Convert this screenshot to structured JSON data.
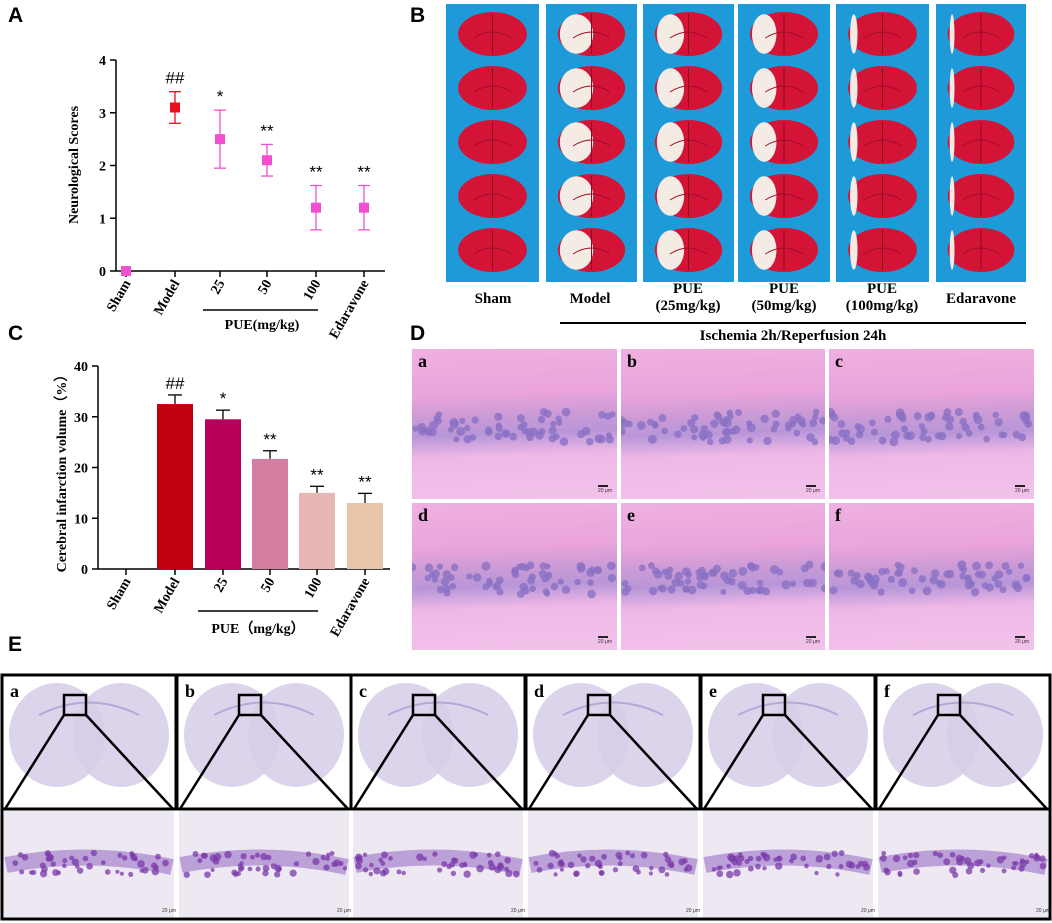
{
  "panel_letters": {
    "a": "A",
    "b": "B",
    "c": "C",
    "d": "D",
    "e": "E"
  },
  "colors": {
    "model": "#c00010",
    "pue25": "#b8005a",
    "pue50": "#d37ea0",
    "pue100": "#e8b6b4",
    "edaravone": "#e8c4a8",
    "markerA_model": "#e8101e",
    "markerA_pue": "#f050d0",
    "bg_blue": "#1e9ad8",
    "brain_red": "#d41436",
    "he_pink": "#eaa0d6",
    "nissl_bg": "#eee8f2"
  },
  "chart_data": [
    {
      "type": "scatter",
      "title": "",
      "xlabel": "PUE(mg/kg)",
      "ylabel": "Neurological Scores",
      "ylim": [
        0,
        4
      ],
      "yticks": [
        "0",
        "1",
        "2",
        "3",
        "4"
      ],
      "categories": [
        "Sham",
        "Model",
        "25",
        "50",
        "100",
        "Edaravone"
      ],
      "values": [
        0,
        3.1,
        2.5,
        2.1,
        1.2,
        1.2
      ],
      "errors": [
        0,
        0.3,
        0.55,
        0.3,
        0.42,
        0.42
      ],
      "annotations": [
        "",
        "##",
        "*",
        "**",
        "**",
        "**"
      ]
    },
    {
      "type": "bar",
      "title": "",
      "xlabel": "PUE（mg/kg）",
      "ylabel": "Cerebral infarction volume（%）",
      "ylim": [
        0,
        40
      ],
      "yticks": [
        "0",
        "10",
        "20",
        "30",
        "40"
      ],
      "categories": [
        "Sham",
        "Model",
        "25",
        "50",
        "100",
        "Edaravone"
      ],
      "values": [
        0,
        32.5,
        29.5,
        21.7,
        15,
        13
      ],
      "errors": [
        0,
        1.8,
        1.8,
        1.6,
        1.3,
        1.9
      ],
      "annotations": [
        "",
        "##",
        "*",
        "**",
        "**",
        "**"
      ]
    }
  ],
  "panelB": {
    "labels": [
      {
        "l1": "Sham",
        "l2": ""
      },
      {
        "l1": "Model",
        "l2": ""
      },
      {
        "l1": "PUE",
        "l2": "(25mg/kg)"
      },
      {
        "l1": "PUE",
        "l2": "(50mg/kg)"
      },
      {
        "l1": "PUE",
        "l2": "(100mg/kg)"
      },
      {
        "l1": "Edaravone",
        "l2": ""
      }
    ],
    "footer": "Ischemia 2h/Reperfusion 24h",
    "infarct_extent": [
      0,
      0.55,
      0.45,
      0.4,
      0.12,
      0.08
    ]
  },
  "panelD": {
    "letters": [
      "a",
      "b",
      "c",
      "d",
      "e",
      "f"
    ],
    "scale": "20 μm"
  },
  "panelE": {
    "letters": [
      "a",
      "b",
      "c",
      "d",
      "e",
      "f"
    ],
    "scale": "20 μm"
  }
}
